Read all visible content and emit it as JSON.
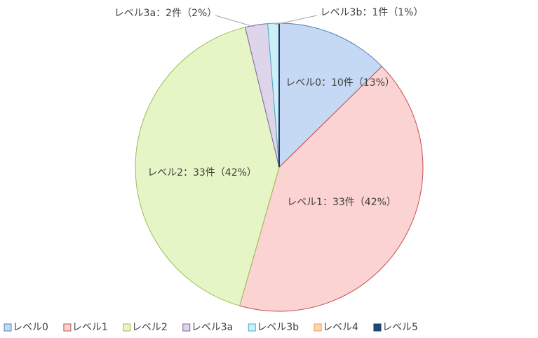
{
  "chart_data": {
    "type": "pie",
    "categories": [
      "レベル0",
      "レベル1",
      "レベル2",
      "レベル3a",
      "レベル3b",
      "レベル4",
      "レベル5"
    ],
    "values": [
      10,
      33,
      33,
      2,
      1,
      0,
      0
    ],
    "value_labels": [
      "レベル0：10件（13%）",
      "レベル1：33件（42%）",
      "レベル2：33件（42%）",
      "レベル3a：2件（2%）",
      "レベル3b：1件（1%）",
      null,
      null
    ],
    "colors": [
      "#c6d9f4",
      "#fbd3d2",
      "#e6f5c5",
      "#ddd5ea",
      "#cdeff8",
      "#fcd5b5",
      "#1f497d"
    ],
    "edge_colors": [
      "#4f81bd",
      "#c0504d",
      "#9bbb59",
      "#8064a2",
      "#4bacc6",
      "#f79646",
      "#1f3864"
    ],
    "legend": "bottom"
  }
}
